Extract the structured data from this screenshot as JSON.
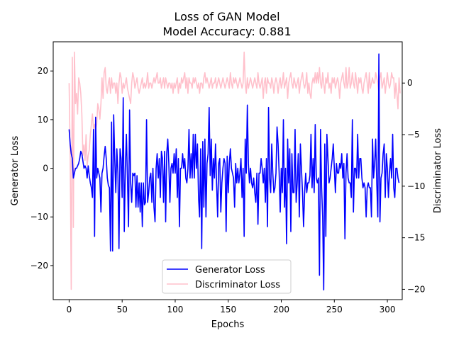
{
  "chart_data": {
    "type": "line",
    "title": "Loss of GAN Model",
    "subtitle": "Model Accuracy: 0.881",
    "xlabel": "Epochs",
    "ylabel_left": "Generator Loss",
    "ylabel_right": "Discriminator Loss",
    "xlim": [
      -15,
      314
    ],
    "ylim_left": [
      -27.0,
      26.0
    ],
    "ylim_right": [
      -21.0,
      4.0
    ],
    "x_ticks": [
      0,
      50,
      100,
      150,
      200,
      250,
      300
    ],
    "y_ticks_left": [
      -20,
      -10,
      0,
      10,
      20
    ],
    "y_ticks_right": [
      -20,
      -15,
      -10,
      -5,
      0
    ],
    "grid": false,
    "legend_position": "lower-center",
    "series": [
      {
        "name": "Generator Loss",
        "axis": "left",
        "color": "#0000ff",
        "values": [
          8.0,
          5.0,
          3.0,
          2.0,
          -2.0,
          -1.0,
          0.0,
          0.0,
          0.5,
          1.0,
          2.0,
          3.5,
          3.0,
          1.5,
          0.0,
          0.5,
          0.0,
          -2.0,
          0.5,
          -1.5,
          -3.0,
          -4.0,
          -6.0,
          8.0,
          -14.0,
          10.5,
          -2.0,
          0.0,
          -1.0,
          -2.0,
          -9.0,
          -1.0,
          0.0,
          2.5,
          4.5,
          2.0,
          -2.0,
          -3.5,
          -4.0,
          -17.0,
          9.5,
          -17.0,
          11.0,
          2.0,
          -5.0,
          4.0,
          -1.0,
          -16.5,
          4.0,
          2.0,
          -6.0,
          14.5,
          -13.0,
          0.0,
          7.0,
          -2.0,
          -12.0,
          12.0,
          -3.0,
          -7.0,
          -1.0,
          -1.5,
          -1.0,
          -8.0,
          -1.5,
          -8.0,
          -3.0,
          -9.0,
          -3.0,
          -12.0,
          -3.0,
          -7.5,
          -7.0,
          10.0,
          -7.0,
          -5.0,
          -2.0,
          -1.0,
          -7.0,
          0.0,
          -8.0,
          -11.0,
          0.0,
          3.0,
          -2.0,
          2.0,
          -6.0,
          3.5,
          2.0,
          -7.0,
          3.5,
          -11.0,
          3.0,
          6.0,
          1.0,
          -7.0,
          0.0,
          1.0,
          -1.0,
          3.0,
          -1.0,
          4.0,
          -6.0,
          2.0,
          -12.0,
          0.0,
          0.0,
          3.0,
          0.0,
          2.0,
          -2.0,
          -3.0,
          0.0,
          8.0,
          -2.0,
          3.0,
          -2.0,
          7.0,
          -2.0,
          7.0,
          0.0,
          5.0,
          -6.0,
          -10.0,
          4.0,
          -16.5,
          5.5,
          -8.0,
          6.0,
          -10.0,
          1.0,
          3.0,
          12.5,
          -1.5,
          6.0,
          -4.5,
          2.0,
          -2.0,
          5.0,
          -3.0,
          -10.0,
          1.0,
          2.0,
          -9.0,
          -3.0,
          0.0,
          2.0,
          1.0,
          -13.0,
          2.5,
          -5.0,
          1.0,
          4.0,
          0.0,
          -1.0,
          -2.0,
          -8.0,
          1.0,
          -3.0,
          0.0,
          -3.0,
          -1.0,
          2.0,
          -6.0,
          0.0,
          -14.0,
          6.0,
          -1.0,
          13.0,
          1.0,
          -3.0,
          0.0,
          -3.0,
          -4.0,
          -2.0,
          -5.0,
          -7.0,
          -1.0,
          -11.5,
          -1.0,
          -1.0,
          2.0,
          0.0,
          -3.0,
          0.0,
          -7.0,
          2.0,
          -12.0,
          12.5,
          -2.0,
          -5.0,
          5.0,
          -1.0,
          -5.0,
          -4.0,
          -1.0,
          8.5,
          5.0,
          -1.0,
          -9.0,
          0.0,
          -5.0,
          10.0,
          -8.0,
          0.0,
          -15.5,
          6.0,
          -3.0,
          4.0,
          -13.0,
          3.0,
          -5.0,
          -5.0,
          8.0,
          -7.0,
          -3.0,
          3.0,
          -10.0,
          5.0,
          0.0,
          -5.0,
          -12.0,
          -5.0,
          -1.0,
          -5.0,
          -3.0,
          -3.0,
          -1.5,
          7.0,
          -4.0,
          2.0,
          -5.0,
          9.0,
          -2.0,
          -3.0,
          -2.0,
          -22.0,
          8.0,
          -4.0,
          -10.0,
          -25.0,
          5.0,
          -14.0,
          7.0,
          2.0,
          -3.0,
          -2.0,
          0.0,
          2.0,
          5.0,
          0.0,
          -5.0,
          1.0,
          -1.0,
          -1.0,
          1.0,
          0.0,
          3.0,
          -2.0,
          1.0,
          -14.5,
          -1.0,
          3.0,
          -2.0,
          -3.0,
          -3.0,
          -6.0,
          10.0,
          -9.0,
          0.0,
          0.0,
          -2.0,
          7.0,
          -2.0,
          2.0,
          2.0,
          -2.0,
          -4.0,
          -3.0,
          -4.0,
          -10.0,
          -4.0,
          -3.0,
          -4.0,
          -4.0,
          -10.0,
          6.0,
          -2.0,
          1.0,
          6.0,
          -3.0,
          -10.0,
          23.5,
          -11.0,
          -2.0,
          -1.0,
          3.0,
          5.0,
          -6.0,
          3.0,
          0.0,
          -6.0,
          -1.0,
          2.0,
          -2.0,
          7.0,
          -4.0,
          -6.0,
          0.0,
          0.0,
          -2.0,
          -3.0
        ]
      },
      {
        "name": "Discriminator Loss",
        "axis": "right",
        "color": "#ffc0cb",
        "values": [
          0.0,
          -7.0,
          -20.0,
          2.5,
          -14.0,
          3.0,
          -2.0,
          -1.0,
          -3.0,
          0.5,
          0.0,
          -1.0,
          -3.0,
          -7.0,
          -6.0,
          -7.5,
          -5.0,
          -8.0,
          -7.0,
          -6.5,
          -5.0,
          -4.0,
          -3.0,
          -4.5,
          -4.0,
          -4.5,
          -4.0,
          -2.0,
          -2.5,
          -3.5,
          -2.0,
          0.5,
          -1.5,
          1.0,
          1.5,
          -0.5,
          -1.0,
          0.0,
          0.5,
          -1.0,
          0.5,
          -0.5,
          0.0,
          0.0,
          -1.0,
          0.0,
          -2.0,
          0.0,
          1.0,
          0.5,
          -1.0,
          0.0,
          -0.5,
          0.0,
          0.5,
          -0.5,
          -1.0,
          -1.5,
          -2.0,
          0.0,
          1.0,
          0.5,
          -0.5,
          0.0,
          0.5,
          -0.5,
          -1.0,
          -0.5,
          0.0,
          0.5,
          -0.5,
          0.0,
          -0.5,
          0.0,
          1.0,
          -0.5,
          0.0,
          0.0,
          -0.5,
          0.0,
          0.5,
          0.0,
          0.5,
          1.0,
          0.0,
          0.0,
          0.5,
          -0.5,
          0.0,
          0.5,
          -0.5,
          0.5,
          0.0,
          -0.5,
          0.0,
          0.0,
          -0.5,
          0.0,
          -1.0,
          0.0,
          -0.5,
          0.0,
          0.5,
          -1.0,
          0.0,
          -0.5,
          0.5,
          0.0,
          0.5,
          1.0,
          -0.5,
          0.5,
          -1.0,
          0.5,
          0.0,
          0.0,
          -0.5,
          0.5,
          0.0,
          0.5,
          0.0,
          -0.5,
          0.0,
          -1.0,
          0.0,
          0.0,
          -0.5,
          0.5,
          1.0,
          0.0,
          0.5,
          0.0,
          -0.5,
          0.0,
          0.5,
          -0.5,
          0.0,
          0.0,
          0.5,
          -0.5,
          0.0,
          0.5,
          0.0,
          -0.5,
          0.0,
          0.5,
          0.0,
          -0.5,
          0.0,
          0.5,
          0.0,
          -0.5,
          1.0,
          0.0,
          -0.5,
          0.5,
          0.0,
          0.5,
          0.0,
          -0.5,
          0.0,
          0.5,
          0.0,
          -0.5,
          0.0,
          3.0,
          0.0,
          -1.0,
          0.5,
          -0.5,
          0.0,
          0.5,
          0.0,
          -0.5,
          0.0,
          0.5,
          0.0,
          -0.5,
          1.0,
          0.0,
          -0.5,
          0.0,
          0.5,
          -1.5,
          0.0,
          0.5,
          -1.0,
          0.5,
          0.0,
          0.0,
          -0.5,
          0.5,
          0.0,
          -1.0,
          0.0,
          0.5,
          0.0,
          -1.0,
          0.0,
          0.5,
          -0.5,
          0.0,
          1.0,
          -0.5,
          0.0,
          0.5,
          -1.5,
          0.0,
          0.5,
          1.0,
          0.0,
          -0.5,
          0.5,
          0.0,
          -0.5,
          0.0,
          0.5,
          -1.0,
          0.0,
          0.5,
          1.0,
          0.0,
          -0.5,
          0.0,
          1.0,
          -1.0,
          0.0,
          -1.0,
          -1.5,
          0.0,
          0.5,
          0.0,
          1.0,
          0.0,
          1.0,
          0.0,
          1.5,
          0.0,
          -0.5,
          1.0,
          0.0,
          -1.0,
          0.5,
          0.0,
          1.0,
          -0.5,
          0.0,
          -1.0,
          0.5,
          0.0,
          0.5,
          -0.5,
          0.0,
          0.5,
          0.0,
          -1.5,
          0.0,
          0.5,
          1.0,
          0.0,
          -0.5,
          1.5,
          -0.5,
          0.0,
          1.5,
          -0.5,
          0.0,
          1.0,
          0.0,
          -0.5,
          1.0,
          0.0,
          -1.0,
          0.5,
          0.0,
          0.5,
          -0.5,
          -1.0,
          0.0,
          0.5,
          1.0,
          0.0,
          -1.0,
          1.0,
          -0.5,
          0.0,
          0.5,
          0.0,
          0.0,
          1.0,
          0.5,
          0.0,
          -1.0,
          0.5,
          1.0,
          -0.5,
          0.0,
          0.5,
          -1.0,
          0.0,
          1.0,
          0.0,
          -0.5,
          0.0,
          1.0,
          0.5,
          0.5,
          -1.5,
          0.0,
          -1.0,
          -2.5,
          0.5,
          -1.0
        ]
      }
    ]
  }
}
